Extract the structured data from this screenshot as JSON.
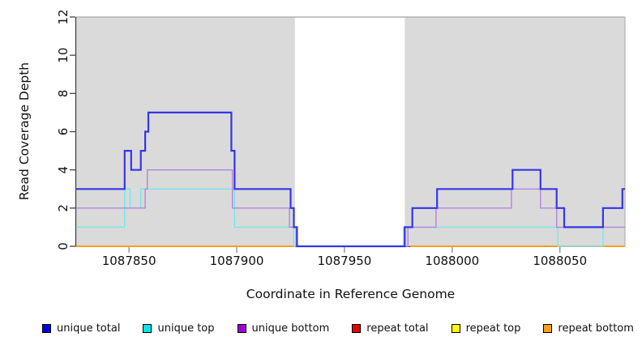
{
  "chart_data": {
    "type": "line",
    "line_style": "step-post",
    "title": "",
    "xlabel": "Coordinate in Reference Genome",
    "ylabel": "Read Coverage Depth",
    "xlim": [
      1087825.5,
      1088080.2
    ],
    "ylim": [
      0,
      12
    ],
    "x_ticks": [
      1087850,
      1087900,
      1087950,
      1088000,
      1088050
    ],
    "x_tick_labels": [
      "1087850",
      "1087900",
      "1087950",
      "1088000",
      "1088050"
    ],
    "y_ticks": [
      0,
      2,
      4,
      6,
      8,
      10,
      12
    ],
    "y_tick_labels": [
      "0",
      "2",
      "4",
      "6",
      "8",
      "10",
      "12"
    ],
    "grid": false,
    "plot_bg_color": "#dadada",
    "gap_region": {
      "start": 1087927,
      "end": 1087978,
      "color": "#ffffff"
    },
    "axis_color": "#444444",
    "tick_color": "#8c8c8c",
    "frame_color": "#a6a6a6",
    "legend_position": "bottom",
    "series": [
      {
        "name": "unique total",
        "color": "#3535e8",
        "legend_color": "#0000e0",
        "width": 2.2,
        "paths": [
          [
            [
              1087825.5,
              3
            ],
            [
              1087848,
              5
            ],
            [
              1087851,
              4
            ],
            [
              1087855.5,
              5
            ],
            [
              1087857.5,
              6
            ],
            [
              1087859,
              7
            ],
            [
              1087897.5,
              5
            ],
            [
              1087899,
              3
            ],
            [
              1087925,
              2
            ],
            [
              1087926.5,
              1
            ],
            [
              1087928,
              0
            ],
            [
              1087978,
              1
            ],
            [
              1087981.5,
              2
            ],
            [
              1087993,
              3
            ],
            [
              1088028,
              4
            ],
            [
              1088041,
              3
            ],
            [
              1088048.5,
              2
            ],
            [
              1088052,
              1
            ],
            [
              1088070,
              2
            ],
            [
              1088079,
              3
            ],
            [
              1088080.2,
              3
            ]
          ]
        ]
      },
      {
        "name": "unique top",
        "color": "#76e7ea",
        "legend_color": "#00e5e5",
        "width": 1.4,
        "paths": [
          [
            [
              1087825.5,
              1
            ],
            [
              1087848,
              3
            ],
            [
              1087850.5,
              2
            ],
            [
              1087855.5,
              3
            ],
            [
              1087899,
              1
            ],
            [
              1087926.5,
              0
            ],
            [
              1087977.5,
              1
            ],
            [
              1088049,
              0
            ],
            [
              1088070,
              2
            ],
            [
              1088080.2,
              2
            ]
          ]
        ]
      },
      {
        "name": "unique bottom",
        "color": "#b583de",
        "legend_color": "#9a00cf",
        "width": 1.4,
        "paths": [
          [
            [
              1087825.5,
              2
            ],
            [
              1087857.5,
              3
            ],
            [
              1087858.5,
              4
            ],
            [
              1087898,
              2
            ],
            [
              1087924.5,
              1
            ],
            [
              1087927.5,
              0
            ],
            [
              1087979.5,
              1
            ],
            [
              1087992.5,
              2
            ],
            [
              1088027.5,
              3
            ],
            [
              1088041,
              2
            ],
            [
              1088048.5,
              1
            ],
            [
              1088080.2,
              1
            ]
          ]
        ]
      },
      {
        "name": "repeat total",
        "color": "#e60000",
        "legend_color": "#e60000",
        "width": 1.5,
        "paths": [
          [
            [
              1087825.5,
              0
            ],
            [
              1087927,
              0
            ]
          ],
          [
            [
              1087980.5,
              0
            ],
            [
              1088080.2,
              0
            ]
          ]
        ]
      },
      {
        "name": "repeat top",
        "color": "#ffff00",
        "legend_color": "#ffff00",
        "width": 1.5,
        "paths": [
          [
            [
              1087825.5,
              0
            ],
            [
              1087927,
              0
            ]
          ],
          [
            [
              1087980.5,
              0
            ],
            [
              1088080.2,
              0
            ]
          ]
        ]
      },
      {
        "name": "repeat bottom",
        "color": "#ff9d1c",
        "legend_color": "#f7a11a",
        "width": 2,
        "paths": [
          [
            [
              1087825.5,
              0
            ],
            [
              1087927,
              0
            ]
          ],
          [
            [
              1087980.5,
              0
            ],
            [
              1088080.2,
              0
            ]
          ]
        ]
      }
    ],
    "draw_order": [
      3,
      4,
      5,
      1,
      2,
      0
    ],
    "legend": [
      {
        "label": "unique total",
        "color": "#0000e0"
      },
      {
        "label": "unique top",
        "color": "#00e5e5"
      },
      {
        "label": "unique bottom",
        "color": "#9a00cf"
      },
      {
        "label": "repeat total",
        "color": "#e60000"
      },
      {
        "label": "repeat top",
        "color": "#ffff00"
      },
      {
        "label": "repeat bottom",
        "color": "#f7a11a"
      }
    ]
  }
}
